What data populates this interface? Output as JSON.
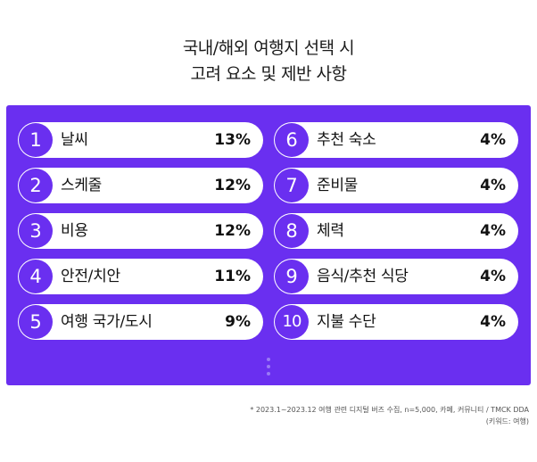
{
  "title": {
    "line1": "국내/해외 여행지 선택 시",
    "line2": "고려 요소 및 제반 사항"
  },
  "colors": {
    "panel": "#6a2ff0",
    "row_bg": "#ffffff",
    "dot": "#9a7af5"
  },
  "chart_data": {
    "type": "table",
    "title": "국내/해외 여행지 선택 시 고려 요소 및 제반 사항",
    "rows": [
      {
        "rank": "1",
        "label": "날씨",
        "value_text": "13%",
        "value": 13
      },
      {
        "rank": "2",
        "label": "스케줄",
        "value_text": "12%",
        "value": 12
      },
      {
        "rank": "3",
        "label": "비용",
        "value_text": "12%",
        "value": 12
      },
      {
        "rank": "4",
        "label": "안전/치안",
        "value_text": "11%",
        "value": 11
      },
      {
        "rank": "5",
        "label": "여행 국가/도시",
        "value_text": "9%",
        "value": 9
      },
      {
        "rank": "6",
        "label": "추천 숙소",
        "value_text": "4%",
        "value": 4
      },
      {
        "rank": "7",
        "label": "준비물",
        "value_text": "4%",
        "value": 4
      },
      {
        "rank": "8",
        "label": "체력",
        "value_text": "4%",
        "value": 4
      },
      {
        "rank": "9",
        "label": "음식/추천 식당",
        "value_text": "4%",
        "value": 4
      },
      {
        "rank": "10",
        "label": "지불 수단",
        "value_text": "4%",
        "value": 4
      }
    ]
  },
  "footnote": {
    "line1": "* 2023.1~2023.12 여행 관련 디지털 버즈 수집, n=5,000, 카페, 커뮤니티 / TMCK DDA",
    "line2": "(키워드: 여행)"
  }
}
